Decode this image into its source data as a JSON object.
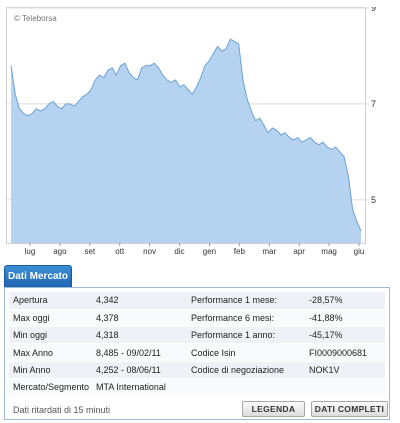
{
  "chart": {
    "watermark": "© Teleborsa"
  },
  "chart_data": {
    "type": "area",
    "x_labels": [
      "lug",
      "ago",
      "set",
      "ott",
      "nov",
      "dic",
      "gen",
      "feb",
      "mar",
      "apr",
      "mag",
      "giu"
    ],
    "y_ticks": [
      9,
      7,
      5
    ],
    "ylim": [
      4.1,
      9
    ],
    "fill_color": "#b5d3f1",
    "line_color": "#6aa1d8",
    "values": [
      7.8,
      7.2,
      6.9,
      6.8,
      6.75,
      6.8,
      6.9,
      6.85,
      6.9,
      7.0,
      7.05,
      6.95,
      6.9,
      7.0,
      7.0,
      6.95,
      7.05,
      7.15,
      7.2,
      7.3,
      7.5,
      7.6,
      7.55,
      7.7,
      7.75,
      7.6,
      7.8,
      7.85,
      7.65,
      7.55,
      7.5,
      7.75,
      7.8,
      7.8,
      7.85,
      7.75,
      7.6,
      7.5,
      7.45,
      7.5,
      7.35,
      7.4,
      7.3,
      7.2,
      7.35,
      7.55,
      7.8,
      7.9,
      8.05,
      8.2,
      8.1,
      8.15,
      8.35,
      8.3,
      8.25,
      7.5,
      7.1,
      6.85,
      6.65,
      6.7,
      6.55,
      6.4,
      6.5,
      6.45,
      6.35,
      6.4,
      6.3,
      6.25,
      6.3,
      6.2,
      6.25,
      6.3,
      6.2,
      6.15,
      6.2,
      6.1,
      6.05,
      6.1,
      6.0,
      5.9,
      5.5,
      4.8,
      4.55,
      4.35
    ]
  },
  "tab": {
    "label": "Dati Mercato"
  },
  "table": {
    "rows": [
      {
        "label": "Apertura",
        "value": "4,342",
        "label2": "Performance 1 mese:",
        "value2": "-28,57%"
      },
      {
        "label": "Max oggi",
        "value": "4,378",
        "label2": "Performance 6 mesi:",
        "value2": "-41,88%"
      },
      {
        "label": "Min oggi",
        "value": "4,318",
        "label2": "Performance 1 anno:",
        "value2": "-45,17%"
      },
      {
        "label": "Max Anno",
        "value": "8,485 - 09/02/11",
        "label2": "Codice Isin",
        "value2": "FI0009000681"
      },
      {
        "label": "Min Anno",
        "value": "4,252 - 08/06/11",
        "label2": "Codice di negoziazione",
        "value2": "NOK1V"
      },
      {
        "label": "Mercato/Segmento",
        "value": "MTA International",
        "label2": "",
        "value2": ""
      }
    ]
  },
  "footer": {
    "note": "Dati ritardati di 15 minuti",
    "legenda_label": "LEGENDA",
    "dati_label": "DATI COMPLETI"
  }
}
